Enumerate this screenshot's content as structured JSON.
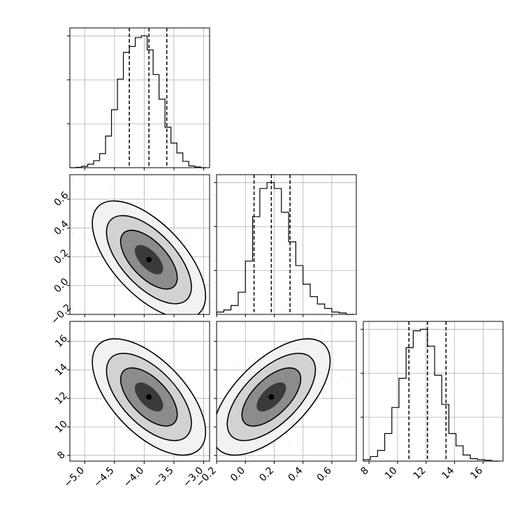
{
  "chart_data": {
    "type": "corner",
    "title": "",
    "variables": [
      {
        "name": "p0",
        "label": "",
        "range": [
          -5.25,
          -2.9
        ],
        "ticks": [
          -5.0,
          -4.5,
          -4.0,
          -3.5,
          -3.0
        ],
        "tick_labels": [
          "−5.0",
          "−4.5",
          "−4.0",
          "−3.5",
          "−3.0"
        ],
        "quantiles": [
          -4.25,
          -3.92,
          -3.62
        ]
      },
      {
        "name": "p1",
        "label": "",
        "range": [
          -0.2,
          0.77
        ],
        "ticks": [
          -0.2,
          0.0,
          0.2,
          0.4,
          0.6
        ],
        "tick_labels": [
          "−0.2",
          "0.0",
          "0.2",
          "0.4",
          "0.6"
        ],
        "quantiles": [
          0.06,
          0.18,
          0.31
        ]
      },
      {
        "name": "p2",
        "label": "",
        "range": [
          7.6,
          17.4
        ],
        "ticks": [
          8,
          10,
          12,
          14,
          16
        ],
        "tick_labels": [
          "8",
          "10",
          "12",
          "14",
          "16"
        ],
        "quantiles": [
          10.8,
          12.1,
          13.4
        ]
      }
    ],
    "histograms": [
      {
        "variable": "p0",
        "bin_edges": [
          -5.25,
          -5.15,
          -5.05,
          -4.95,
          -4.85,
          -4.75,
          -4.65,
          -4.55,
          -4.45,
          -4.35,
          -4.25,
          -4.15,
          -4.05,
          -3.95,
          -3.85,
          -3.75,
          -3.65,
          -3.55,
          -3.45,
          -3.35,
          -3.25,
          -3.15,
          -3.05,
          -2.95
        ],
        "counts": [
          0,
          1,
          4,
          10,
          20,
          40,
          90,
          165,
          252,
          328,
          345,
          370,
          375,
          335,
          265,
          195,
          115,
          70,
          42,
          18,
          5,
          2,
          0
        ]
      },
      {
        "variable": "p1",
        "bin_edges": [
          -0.2,
          -0.15,
          -0.1,
          -0.05,
          0.0,
          0.05,
          0.1,
          0.15,
          0.2,
          0.25,
          0.3,
          0.35,
          0.4,
          0.45,
          0.5,
          0.55,
          0.6,
          0.65,
          0.7,
          0.75
        ],
        "counts": [
          8,
          15,
          30,
          75,
          180,
          330,
          425,
          445,
          425,
          345,
          245,
          165,
          102,
          60,
          35,
          20,
          8,
          5,
          0
        ]
      },
      {
        "variable": "p2",
        "bin_edges": [
          7.6,
          8.1,
          8.6,
          9.1,
          9.6,
          10.1,
          10.6,
          11.1,
          11.6,
          12.1,
          12.6,
          13.1,
          13.6,
          14.1,
          14.6,
          15.1,
          15.6,
          16.1,
          16.6,
          17.1
        ],
        "counts": [
          5,
          15,
          35,
          90,
          175,
          270,
          370,
          425,
          430,
          375,
          280,
          185,
          90,
          50,
          20,
          8,
          5,
          3,
          0
        ]
      }
    ],
    "joint": [
      {
        "x": "p0",
        "y": "p1",
        "mean": [
          -3.92,
          0.18
        ],
        "sd": [
          0.28,
          0.12
        ],
        "rho": -0.62
      },
      {
        "x": "p0",
        "y": "p2",
        "mean": [
          -3.92,
          12.1
        ],
        "sd": [
          0.28,
          1.2
        ],
        "rho": -0.6
      },
      {
        "x": "p1",
        "y": "p2",
        "mean": [
          0.18,
          12.1
        ],
        "sd": [
          0.12,
          1.2
        ],
        "rho": 0.62
      }
    ],
    "grid": true,
    "contour_levels": [
      0.5,
      1.0,
      1.5,
      2.0
    ]
  }
}
